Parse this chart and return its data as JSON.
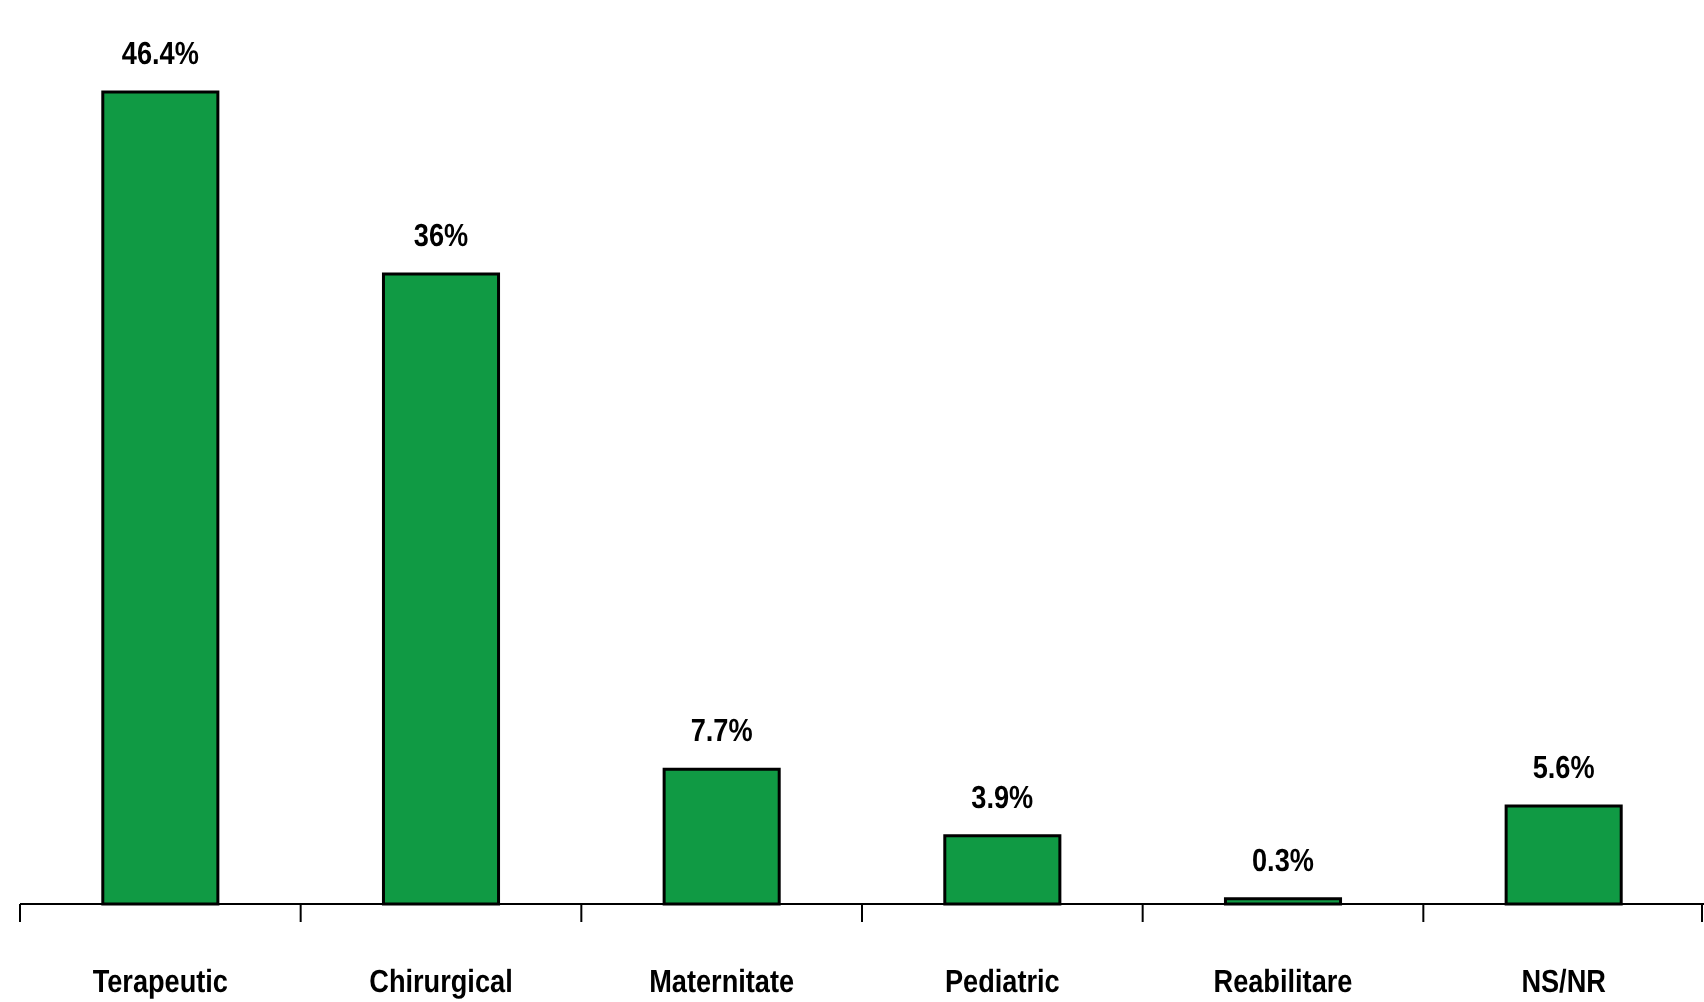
{
  "chart_data": {
    "type": "bar",
    "categories": [
      "Terapeutic",
      "Chirurgical",
      "Maternitate",
      "Pediatric",
      "Reabilitare",
      "NS/NR"
    ],
    "values": [
      46.4,
      36,
      7.7,
      3.9,
      0.3,
      5.6
    ],
    "value_labels": [
      "46.4%",
      "36%",
      "7.7%",
      "3.9%",
      "0.3%",
      "5.6%"
    ],
    "color": "#109a44"
  }
}
